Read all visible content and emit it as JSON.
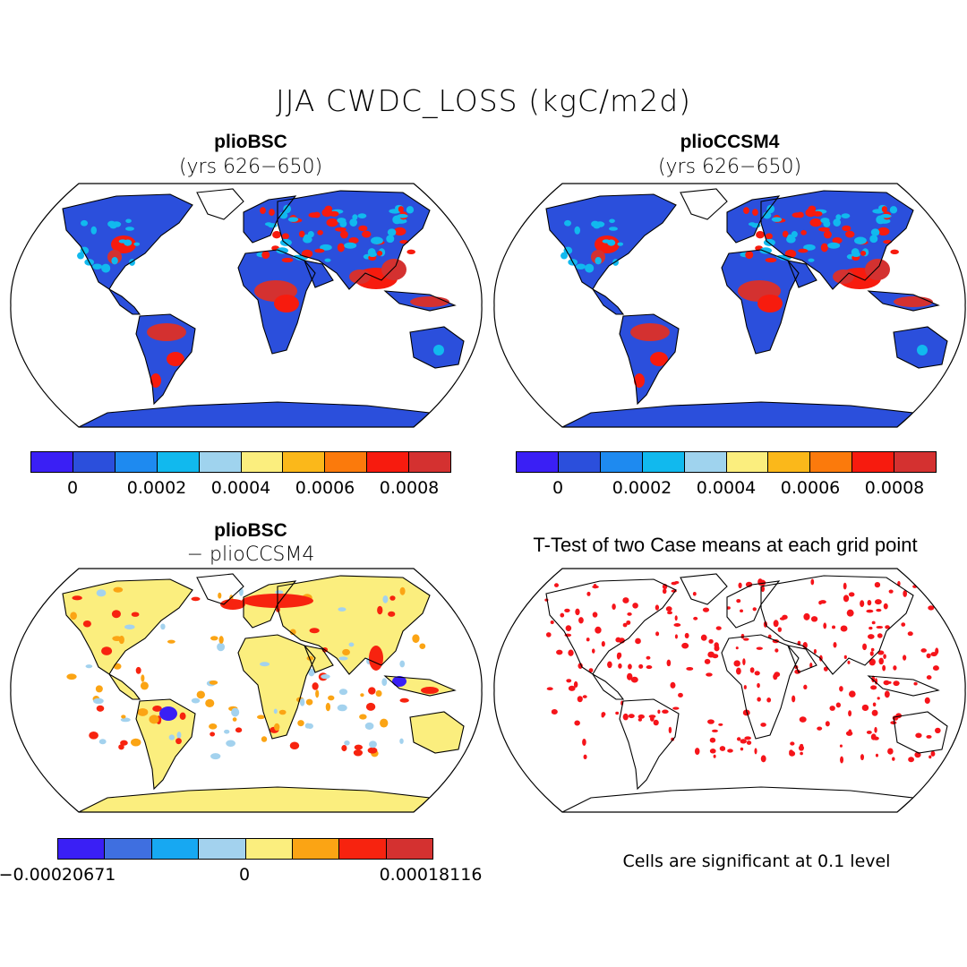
{
  "figure": {
    "title": "JJA CWDC_LOSS (kgC/m2d)"
  },
  "panels": {
    "top_left": {
      "title": "plioBSC",
      "subtitle": "(yrs 626−650)"
    },
    "top_right": {
      "title": "plioCCSM4",
      "subtitle": "(yrs 626−650)"
    },
    "bottom_left": {
      "title": "plioBSC",
      "subtitle": "− plioCCSM4"
    },
    "bottom_right": {
      "title": "T-Test of two Case means at each grid point",
      "note": "Cells are significant at 0.1 level"
    }
  },
  "colorbars": {
    "main": {
      "colors": [
        "#3a1ff5",
        "#2b4fdc",
        "#1e8af0",
        "#11b9ee",
        "#9fd3ee",
        "#fbee7e",
        "#fbb81a",
        "#fb7a0c",
        "#f71b0e",
        "#d43130"
      ],
      "ticks": [
        "0",
        "0.0002",
        "0.0004",
        "0.0006",
        "0.0008"
      ]
    },
    "diff": {
      "colors": [
        "#3a1ff5",
        "#3f6fe0",
        "#17a8f2",
        "#a3d2ee",
        "#fbee7e",
        "#fba414",
        "#f7230f",
        "#d43130"
      ],
      "ticks": [
        "−0.00020671",
        "0",
        "0.00018116"
      ]
    }
  },
  "map_colors": {
    "land_low": "#2b4fdc",
    "land_mid": "#11b9ee",
    "land_high": "#f71b0e",
    "land_peak": "#d43130",
    "diff_base": "#fbee7e",
    "diff_pos": "#f7230f",
    "diff_neg": "#3a1ff5",
    "sig": "#f5141a"
  },
  "chart_data": {
    "type": "heatmap",
    "title": "JJA CWDC_LOSS (kgC/m2d)",
    "panels": [
      {
        "name": "plioBSC (yrs 626−650)",
        "range": [
          0,
          0.0009
        ],
        "ticks": [
          0,
          0.0002,
          0.0004,
          0.0006,
          0.0008
        ]
      },
      {
        "name": "plioCCSM4 (yrs 626−650)",
        "range": [
          0,
          0.0009
        ],
        "ticks": [
          0,
          0.0002,
          0.0004,
          0.0006,
          0.0008
        ]
      },
      {
        "name": "plioBSC − plioCCSM4",
        "range": [
          -0.00020671,
          0.00018116
        ],
        "ticks": [
          -0.00020671,
          0,
          0.00018116
        ]
      },
      {
        "name": "T-Test of two Case means at each grid point",
        "significance_level": 0.1
      }
    ]
  }
}
